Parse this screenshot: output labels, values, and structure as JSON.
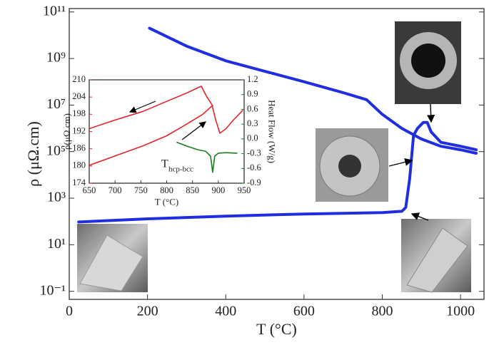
{
  "chart_data": [
    {
      "type": "line",
      "x_label": "T (°C)",
      "y_label": "ρ (μΩ.cm)",
      "yscale": "log",
      "xlim": [
        0,
        1060
      ],
      "ylim": [
        0.045,
        140000000000.0
      ],
      "xticks": [
        0,
        200,
        400,
        600,
        800,
        1000
      ],
      "yticks": [
        {
          "value": 0.1,
          "label": "10⁻¹"
        },
        {
          "value": 10,
          "label": "10¹"
        },
        {
          "value": 1000,
          "label": "10³"
        },
        {
          "value": 100000,
          "label": "10⁵"
        },
        {
          "value": 10000000,
          "label": "10⁷"
        },
        {
          "value": 1000000000,
          "label": "10⁹"
        },
        {
          "value": 100000000000,
          "label": "10¹¹"
        }
      ],
      "series": [
        {
          "color": "#1f2fe0",
          "x": [
            24,
            200,
            400,
            600,
            800,
            850,
            860,
            870,
            880,
            890,
            905,
            915,
            925,
            950,
            1000,
            1040
          ],
          "values": [
            95,
            130,
            170,
            210,
            240,
            275,
            400,
            7000,
            500000,
            1000000,
            1800000,
            1800000,
            700000,
            250000,
            170000,
            120000
          ]
        },
        {
          "color": "#1f2fe0",
          "x": [
            205,
            300,
            400,
            500,
            600,
            700,
            760,
            800,
            850,
            900,
            950,
            1000,
            1040
          ],
          "values": [
            20000000000,
            3400000000,
            800000000,
            280000000,
            100000000,
            34000000,
            17000000,
            4000000,
            1000000,
            350000,
            170000,
            120000,
            85000
          ]
        }
      ]
    },
    {
      "type": "line",
      "x_label": "T (°C)",
      "y_label": "ρ(μΩ.cm)",
      "y2_label": "Heat Flow (W/g)",
      "ycolor": "#e3242b",
      "y2color": "#1b7d1b",
      "xlim": [
        650,
        950
      ],
      "ylim": [
        174,
        210
      ],
      "y2lim": [
        -0.9,
        1.2
      ],
      "xticks": [
        650,
        700,
        750,
        800,
        850,
        900,
        950
      ],
      "yticks": [
        174,
        180,
        186,
        192,
        198,
        204,
        210
      ],
      "y2ticks": [
        -0.9,
        -0.6,
        -0.3,
        {
          "value": 0,
          "label": "0.0"
        },
        0.3,
        0.6,
        0.9,
        1.2
      ],
      "annotation": {
        "text": "T",
        "subscript": "hcp-bcc"
      },
      "series": [
        {
          "color": "#e3242b",
          "x": [
            650,
            700,
            754,
            800,
            837,
            870,
            888,
            895,
            903,
            915,
            927,
            947
          ],
          "values": [
            180.2,
            183.5,
            187,
            190.5,
            194.4,
            198,
            201,
            196,
            191.4,
            193,
            195.6,
            199.3
          ]
        },
        {
          "color": "#e3242b",
          "x": [
            650,
            700,
            754,
            800,
            840,
            867,
            878,
            889
          ],
          "values": [
            193,
            196,
            199,
            202.5,
            205.5,
            207.8,
            204,
            201
          ]
        },
        {
          "color": "#1b7d1b",
          "axis": "y2",
          "x": [
            820,
            840,
            860,
            875,
            885,
            889,
            893,
            900,
            915,
            936
          ],
          "values": [
            -0.07,
            -0.15,
            -0.22,
            -0.25,
            -0.35,
            -0.68,
            -0.35,
            -0.29,
            -0.28,
            -0.29
          ]
        }
      ]
    }
  ]
}
